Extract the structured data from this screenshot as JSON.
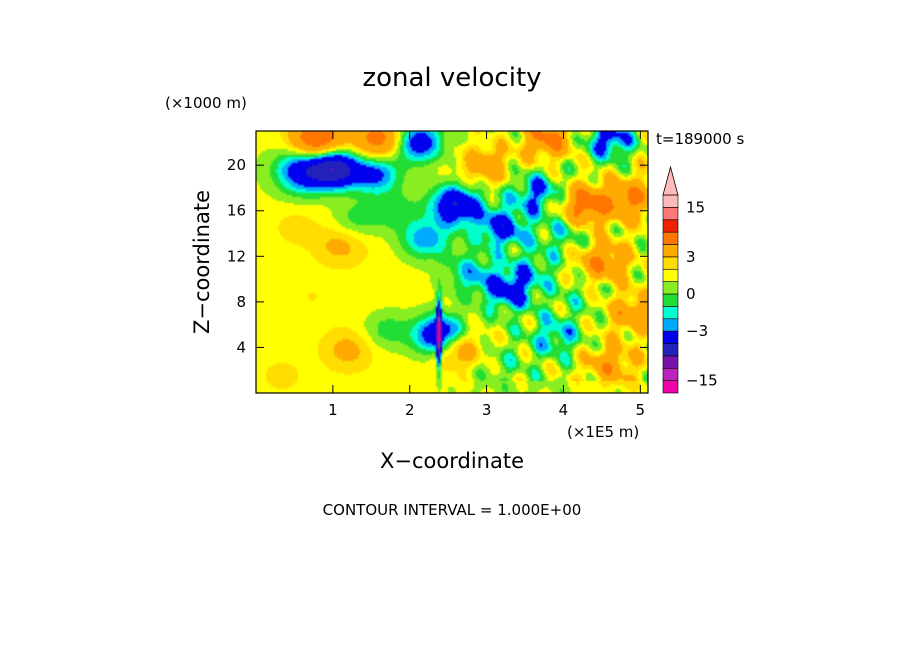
{
  "chart_data": {
    "type": "heatmap",
    "title": "zonal velocity",
    "xlabel": "X−coordinate",
    "ylabel": "Z−coordinate",
    "x_unit": "(×1E5 m)",
    "y_unit": "(×1000 m)",
    "time_label": "t=189000 s",
    "footer": "CONTOUR INTERVAL = 1.000E+00",
    "xlim": [
      0,
      5.1
    ],
    "ylim": [
      0,
      23
    ],
    "x_ticks": [
      1,
      2,
      3,
      4,
      5
    ],
    "x_tick_labels": [
      "1",
      "2",
      "3",
      "4",
      "5"
    ],
    "y_ticks": [
      4,
      8,
      12,
      16,
      20
    ],
    "y_tick_labels": [
      "4",
      "8",
      "12",
      "16",
      "20"
    ],
    "colorbar": {
      "levels": [
        -18,
        -15,
        -12,
        -9,
        -6,
        -3,
        -2,
        -1,
        0,
        1,
        2,
        3,
        6,
        9,
        12,
        15,
        18
      ],
      "colors": [
        "#ee00aa",
        "#bb22bb",
        "#7711aa",
        "#2222bb",
        "#0000ee",
        "#00aaff",
        "#00ffcc",
        "#22dd33",
        "#88ee22",
        "#ffff00",
        "#ffdd00",
        "#ffaa00",
        "#ff7700",
        "#ee2200",
        "#ff7777",
        "#ffbbbb"
      ],
      "tick_values": [
        15,
        3,
        0,
        -3,
        -15
      ],
      "tick_labels": [
        "15",
        "3",
        "0",
        "−3",
        "−15"
      ],
      "extend": "max"
    },
    "field_features": [
      {
        "x": 0.8,
        "z": 22.3,
        "u": 8
      },
      {
        "x": 1.6,
        "z": 22.3,
        "u": 6
      },
      {
        "x": 2.1,
        "z": 22.0,
        "u": -6
      },
      {
        "x": 3.8,
        "z": 22.3,
        "u": 6
      },
      {
        "x": 4.6,
        "z": 22.3,
        "u": -5
      },
      {
        "x": 1.0,
        "z": 19.7,
        "u": -10
      },
      {
        "x": 0.55,
        "z": 19.8,
        "u": -4
      },
      {
        "x": 1.55,
        "z": 19.2,
        "u": -5
      },
      {
        "x": 2.6,
        "z": 16.5,
        "u": -7
      },
      {
        "x": 3.2,
        "z": 14.5,
        "u": -5
      },
      {
        "x": 3.65,
        "z": 17.5,
        "u": -4
      },
      {
        "x": 4.3,
        "z": 16.5,
        "u": 7
      },
      {
        "x": 4.9,
        "z": 17.0,
        "u": 5
      },
      {
        "x": 4.5,
        "z": 11.5,
        "u": 5
      },
      {
        "x": 3.3,
        "z": 9.0,
        "u": -5
      },
      {
        "x": 2.4,
        "z": 5.0,
        "u": -8
      },
      {
        "x": 2.6,
        "z": 4.0,
        "u": 5
      },
      {
        "x": 3.9,
        "z": 5.0,
        "u": -3
      },
      {
        "x": 1.2,
        "z": 3.8,
        "u": 2
      },
      {
        "x": 0.6,
        "z": 18.5,
        "u": -2
      },
      {
        "x": 1.3,
        "z": 15.2,
        "u": -2
      },
      {
        "x": 1.8,
        "z": 16.0,
        "u": -2
      },
      {
        "x": 1.1,
        "z": 13.0,
        "u": 2
      },
      {
        "x": 0.5,
        "z": 14.5,
        "u": 1
      },
      {
        "x": 0.7,
        "z": 8.5,
        "u": 0.5
      },
      {
        "x": 1.7,
        "z": 5.5,
        "u": -2
      },
      {
        "x": 2.8,
        "z": 10.5,
        "u": -3
      },
      {
        "x": 3.6,
        "z": 11.0,
        "u": -2
      },
      {
        "x": 4.9,
        "z": 7.0,
        "u": 4
      },
      {
        "x": 4.2,
        "z": 8.5,
        "u": -1
      },
      {
        "x": 3.2,
        "z": 2.5,
        "u": -1
      },
      {
        "x": 4.6,
        "z": 2.5,
        "u": 4
      },
      {
        "x": 0.3,
        "z": 1.5,
        "u": 1
      },
      {
        "x": 2.2,
        "z": 13.5,
        "u": -4
      },
      {
        "x": 3.0,
        "z": 20.0,
        "u": 4
      },
      {
        "x": 4.0,
        "z": 14.0,
        "u": -2
      }
    ]
  }
}
